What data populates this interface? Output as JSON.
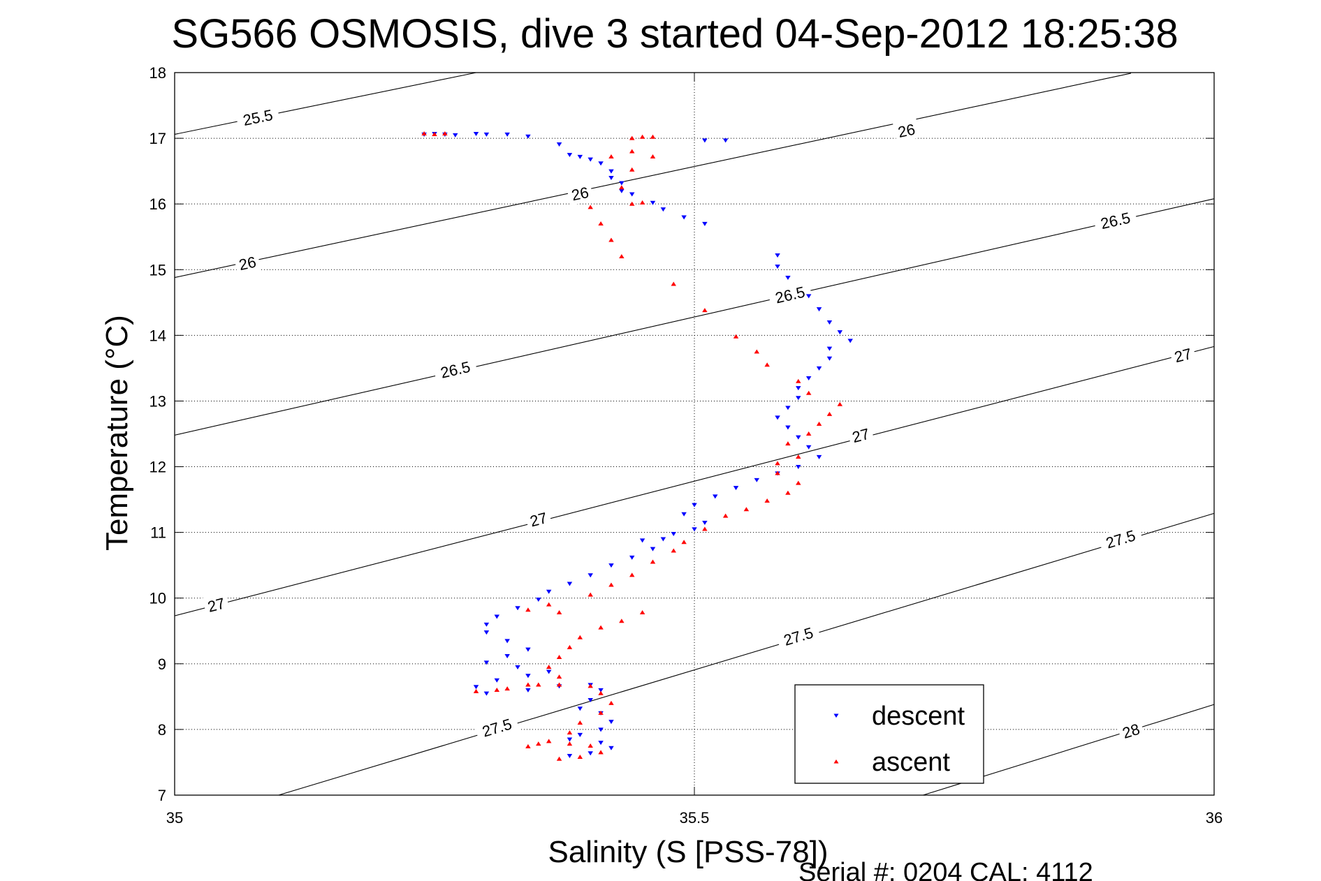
{
  "chart_data": {
    "type": "scatter",
    "title": "SG566 OSMOSIS, dive 3 started 04-Sep-2012 18:25:38",
    "xlabel": "Salinity (S [PSS-78])",
    "ylabel": "Temperature (°C)",
    "xlim": [
      35,
      36
    ],
    "ylim": [
      7,
      18
    ],
    "xticks": [
      "35",
      "35.5",
      "36"
    ],
    "yticks": [
      "7",
      "8",
      "9",
      "10",
      "11",
      "12",
      "13",
      "14",
      "15",
      "16",
      "17",
      "18"
    ],
    "grid": true,
    "footer": "Serial #: 0204  CAL: 4112",
    "legend": {
      "placement": "lower-right"
    },
    "density_contours": [
      {
        "label": "25.5",
        "points": [
          [
            35.0,
            17.06
          ],
          [
            35.29,
            18.0
          ]
        ],
        "label_at": [
          [
            35.08,
            17.32
          ]
        ]
      },
      {
        "label": "26",
        "points": [
          [
            35.0,
            14.88
          ],
          [
            35.92,
            17.99
          ]
        ],
        "label_at": [
          [
            35.07,
            15.1
          ],
          [
            35.39,
            16.16
          ],
          [
            35.704,
            17.12
          ]
        ]
      },
      {
        "label": "26.5",
        "points": [
          [
            35.0,
            12.48
          ],
          [
            36.0,
            16.08
          ]
        ],
        "label_at": [
          [
            35.27,
            13.48
          ],
          [
            35.592,
            14.62
          ],
          [
            35.905,
            15.75
          ]
        ]
      },
      {
        "label": "27",
        "points": [
          [
            35.0,
            9.73
          ],
          [
            36.0,
            13.83
          ]
        ],
        "label_at": [
          [
            35.04,
            9.9
          ],
          [
            35.35,
            11.2
          ],
          [
            35.66,
            12.48
          ],
          [
            35.97,
            13.7
          ]
        ]
      },
      {
        "label": "27.5",
        "points": [
          [
            35.1,
            7.0
          ],
          [
            36.0,
            11.29
          ]
        ],
        "label_at": [
          [
            35.31,
            8.03
          ],
          [
            35.6,
            9.42
          ],
          [
            35.91,
            10.9
          ]
        ]
      },
      {
        "label": "28",
        "points": [
          [
            35.72,
            7.0
          ],
          [
            36.0,
            8.38
          ]
        ],
        "label_at": [
          [
            35.92,
            7.98
          ]
        ]
      }
    ],
    "series": [
      {
        "name": "descent",
        "color": "#0000ff",
        "marker": "triangle-down",
        "points": [
          [
            35.24,
            17.06
          ],
          [
            35.25,
            17.07
          ],
          [
            35.26,
            17.06
          ],
          [
            35.27,
            17.05
          ],
          [
            35.29,
            17.07
          ],
          [
            35.3,
            17.06
          ],
          [
            35.32,
            17.06
          ],
          [
            35.34,
            17.03
          ],
          [
            35.37,
            16.91
          ],
          [
            35.38,
            16.75
          ],
          [
            35.39,
            16.72
          ],
          [
            35.4,
            16.68
          ],
          [
            35.41,
            16.62
          ],
          [
            35.42,
            16.5
          ],
          [
            35.42,
            16.4
          ],
          [
            35.43,
            16.32
          ],
          [
            35.43,
            16.2
          ],
          [
            35.44,
            16.15
          ],
          [
            35.46,
            16.02
          ],
          [
            35.47,
            15.92
          ],
          [
            35.49,
            15.8
          ],
          [
            35.51,
            15.7
          ],
          [
            35.51,
            16.97
          ],
          [
            35.53,
            16.97
          ],
          [
            35.58,
            15.22
          ],
          [
            35.58,
            15.05
          ],
          [
            35.59,
            14.88
          ],
          [
            35.61,
            14.6
          ],
          [
            35.62,
            14.4
          ],
          [
            35.63,
            14.2
          ],
          [
            35.64,
            14.05
          ],
          [
            35.65,
            13.92
          ],
          [
            35.63,
            13.8
          ],
          [
            35.63,
            13.65
          ],
          [
            35.62,
            13.5
          ],
          [
            35.61,
            13.35
          ],
          [
            35.6,
            13.2
          ],
          [
            35.6,
            13.05
          ],
          [
            35.59,
            12.9
          ],
          [
            35.58,
            12.75
          ],
          [
            35.59,
            12.6
          ],
          [
            35.6,
            12.45
          ],
          [
            35.61,
            12.3
          ],
          [
            35.62,
            12.15
          ],
          [
            35.6,
            12.0
          ],
          [
            35.58,
            11.9
          ],
          [
            35.56,
            11.8
          ],
          [
            35.54,
            11.68
          ],
          [
            35.52,
            11.55
          ],
          [
            35.5,
            11.42
          ],
          [
            35.49,
            11.28
          ],
          [
            35.51,
            11.15
          ],
          [
            35.5,
            11.05
          ],
          [
            35.48,
            10.98
          ],
          [
            35.47,
            10.9
          ],
          [
            35.45,
            10.88
          ],
          [
            35.46,
            10.75
          ],
          [
            35.44,
            10.62
          ],
          [
            35.42,
            10.5
          ],
          [
            35.4,
            10.35
          ],
          [
            35.38,
            10.22
          ],
          [
            35.36,
            10.1
          ],
          [
            35.35,
            9.98
          ],
          [
            35.33,
            9.85
          ],
          [
            35.31,
            9.72
          ],
          [
            35.3,
            9.6
          ],
          [
            35.3,
            9.48
          ],
          [
            35.32,
            9.35
          ],
          [
            35.34,
            9.22
          ],
          [
            35.32,
            9.12
          ],
          [
            35.3,
            9.02
          ],
          [
            35.33,
            8.95
          ],
          [
            35.36,
            8.88
          ],
          [
            35.34,
            8.82
          ],
          [
            35.31,
            8.75
          ],
          [
            35.29,
            8.65
          ],
          [
            35.3,
            8.55
          ],
          [
            35.34,
            8.6
          ],
          [
            35.37,
            8.66
          ],
          [
            35.4,
            8.68
          ],
          [
            35.41,
            8.6
          ],
          [
            35.4,
            8.45
          ],
          [
            35.39,
            8.32
          ],
          [
            35.41,
            8.25
          ],
          [
            35.42,
            8.12
          ],
          [
            35.41,
            8.0
          ],
          [
            35.39,
            7.92
          ],
          [
            35.38,
            7.85
          ],
          [
            35.41,
            7.8
          ],
          [
            35.42,
            7.72
          ],
          [
            35.4,
            7.64
          ],
          [
            35.38,
            7.6
          ]
        ]
      },
      {
        "name": "ascent",
        "color": "#ff0000",
        "marker": "triangle-up",
        "points": [
          [
            35.37,
            7.55
          ],
          [
            35.39,
            7.58
          ],
          [
            35.41,
            7.65
          ],
          [
            35.4,
            7.75
          ],
          [
            35.38,
            7.78
          ],
          [
            35.35,
            7.78
          ],
          [
            35.34,
            7.74
          ],
          [
            35.36,
            7.82
          ],
          [
            35.38,
            7.95
          ],
          [
            35.39,
            8.1
          ],
          [
            35.41,
            8.25
          ],
          [
            35.42,
            8.4
          ],
          [
            35.41,
            8.55
          ],
          [
            35.4,
            8.66
          ],
          [
            35.37,
            8.68
          ],
          [
            35.34,
            8.68
          ],
          [
            35.31,
            8.6
          ],
          [
            35.29,
            8.58
          ],
          [
            35.32,
            8.62
          ],
          [
            35.35,
            8.68
          ],
          [
            35.37,
            8.8
          ],
          [
            35.36,
            8.95
          ],
          [
            35.37,
            9.1
          ],
          [
            35.38,
            9.25
          ],
          [
            35.39,
            9.4
          ],
          [
            35.41,
            9.55
          ],
          [
            35.43,
            9.65
          ],
          [
            35.45,
            9.78
          ],
          [
            35.37,
            9.78
          ],
          [
            35.34,
            9.82
          ],
          [
            35.36,
            9.9
          ],
          [
            35.4,
            10.05
          ],
          [
            35.42,
            10.2
          ],
          [
            35.44,
            10.35
          ],
          [
            35.46,
            10.55
          ],
          [
            35.48,
            10.72
          ],
          [
            35.49,
            10.85
          ],
          [
            35.51,
            11.05
          ],
          [
            35.53,
            11.25
          ],
          [
            35.55,
            11.35
          ],
          [
            35.57,
            11.48
          ],
          [
            35.59,
            11.6
          ],
          [
            35.6,
            11.75
          ],
          [
            35.58,
            11.9
          ],
          [
            35.58,
            12.05
          ],
          [
            35.6,
            12.15
          ],
          [
            35.59,
            12.35
          ],
          [
            35.61,
            12.5
          ],
          [
            35.62,
            12.65
          ],
          [
            35.63,
            12.8
          ],
          [
            35.64,
            12.95
          ],
          [
            35.61,
            13.12
          ],
          [
            35.6,
            13.3
          ],
          [
            35.57,
            13.55
          ],
          [
            35.56,
            13.75
          ],
          [
            35.54,
            13.98
          ],
          [
            35.51,
            14.38
          ],
          [
            35.48,
            14.78
          ],
          [
            35.43,
            15.2
          ],
          [
            35.42,
            15.45
          ],
          [
            35.41,
            15.7
          ],
          [
            35.4,
            15.95
          ],
          [
            35.44,
            16.0
          ],
          [
            35.45,
            16.02
          ],
          [
            35.43,
            16.25
          ],
          [
            35.44,
            16.52
          ],
          [
            35.42,
            16.72
          ],
          [
            35.44,
            16.8
          ],
          [
            35.46,
            16.72
          ],
          [
            35.44,
            17.0
          ],
          [
            35.45,
            17.02
          ],
          [
            35.46,
            17.02
          ],
          [
            35.24,
            17.07
          ],
          [
            35.25,
            17.06
          ],
          [
            35.26,
            17.07
          ]
        ]
      }
    ]
  }
}
